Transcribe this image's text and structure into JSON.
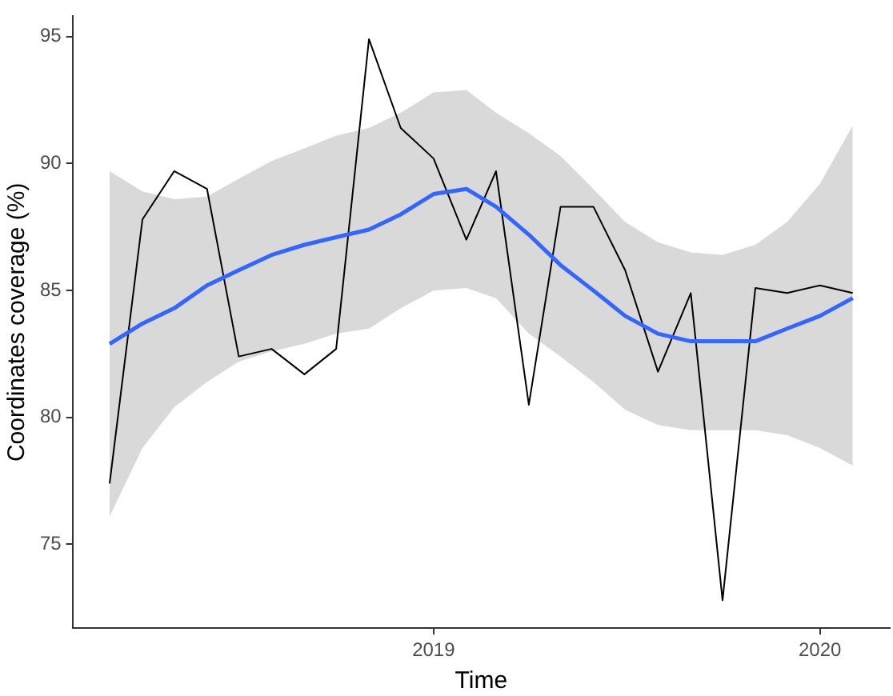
{
  "chart_data": {
    "type": "line",
    "xlabel": "Time",
    "ylabel": "Coordinates coverage (%)",
    "x": [
      "2018-03",
      "2018-04",
      "2018-05",
      "2018-06",
      "2018-07",
      "2018-08",
      "2018-09",
      "2018-10",
      "2018-11",
      "2018-12",
      "2019-01",
      "2019-02",
      "2019-03",
      "2019-04",
      "2019-05",
      "2019-06",
      "2019-07",
      "2019-08",
      "2019-09",
      "2019-10",
      "2019-11",
      "2019-12",
      "2020-01",
      "2020-02"
    ],
    "series": [
      {
        "color": "#000000",
        "values": [
          77.4,
          87.8,
          89.7,
          89.0,
          82.4,
          82.7,
          81.7,
          82.7,
          94.9,
          91.4,
          90.2,
          87.0,
          89.7,
          80.5,
          88.3,
          88.3,
          85.8,
          81.8,
          84.9,
          72.8,
          85.1,
          84.9,
          85.2,
          84.9
        ]
      },
      {
        "color": "#3366ff",
        "values": [
          82.9,
          83.7,
          84.3,
          85.2,
          85.8,
          86.4,
          86.8,
          87.1,
          87.4,
          88.0,
          88.8,
          89.0,
          88.3,
          87.2,
          86.0,
          85.0,
          84.0,
          83.3,
          83.0,
          83.0,
          83.0,
          83.5,
          84.0,
          84.7
        ],
        "lower": [
          76.1,
          78.8,
          80.4,
          81.4,
          82.2,
          82.6,
          82.9,
          83.3,
          83.5,
          84.3,
          85.0,
          85.1,
          84.7,
          83.3,
          82.4,
          81.4,
          80.3,
          79.7,
          79.5,
          79.5,
          79.5,
          79.3,
          78.8,
          78.1
        ],
        "upper": [
          89.7,
          88.9,
          88.6,
          88.7,
          89.4,
          90.1,
          90.6,
          91.1,
          91.4,
          92.0,
          92.8,
          92.9,
          92.0,
          91.2,
          90.3,
          89.0,
          87.7,
          86.9,
          86.5,
          86.4,
          86.8,
          87.7,
          89.2,
          91.5
        ]
      }
    ],
    "xlim": [
      "2018-01-25",
      "2020-03-07"
    ],
    "xticks": [
      "2019",
      "2020"
    ],
    "ylim": [
      71.7,
      95.8
    ],
    "yticks": [
      75,
      80,
      85,
      90,
      95
    ],
    "grid": false,
    "legend": false,
    "marker": "none",
    "line_style": "solid"
  }
}
